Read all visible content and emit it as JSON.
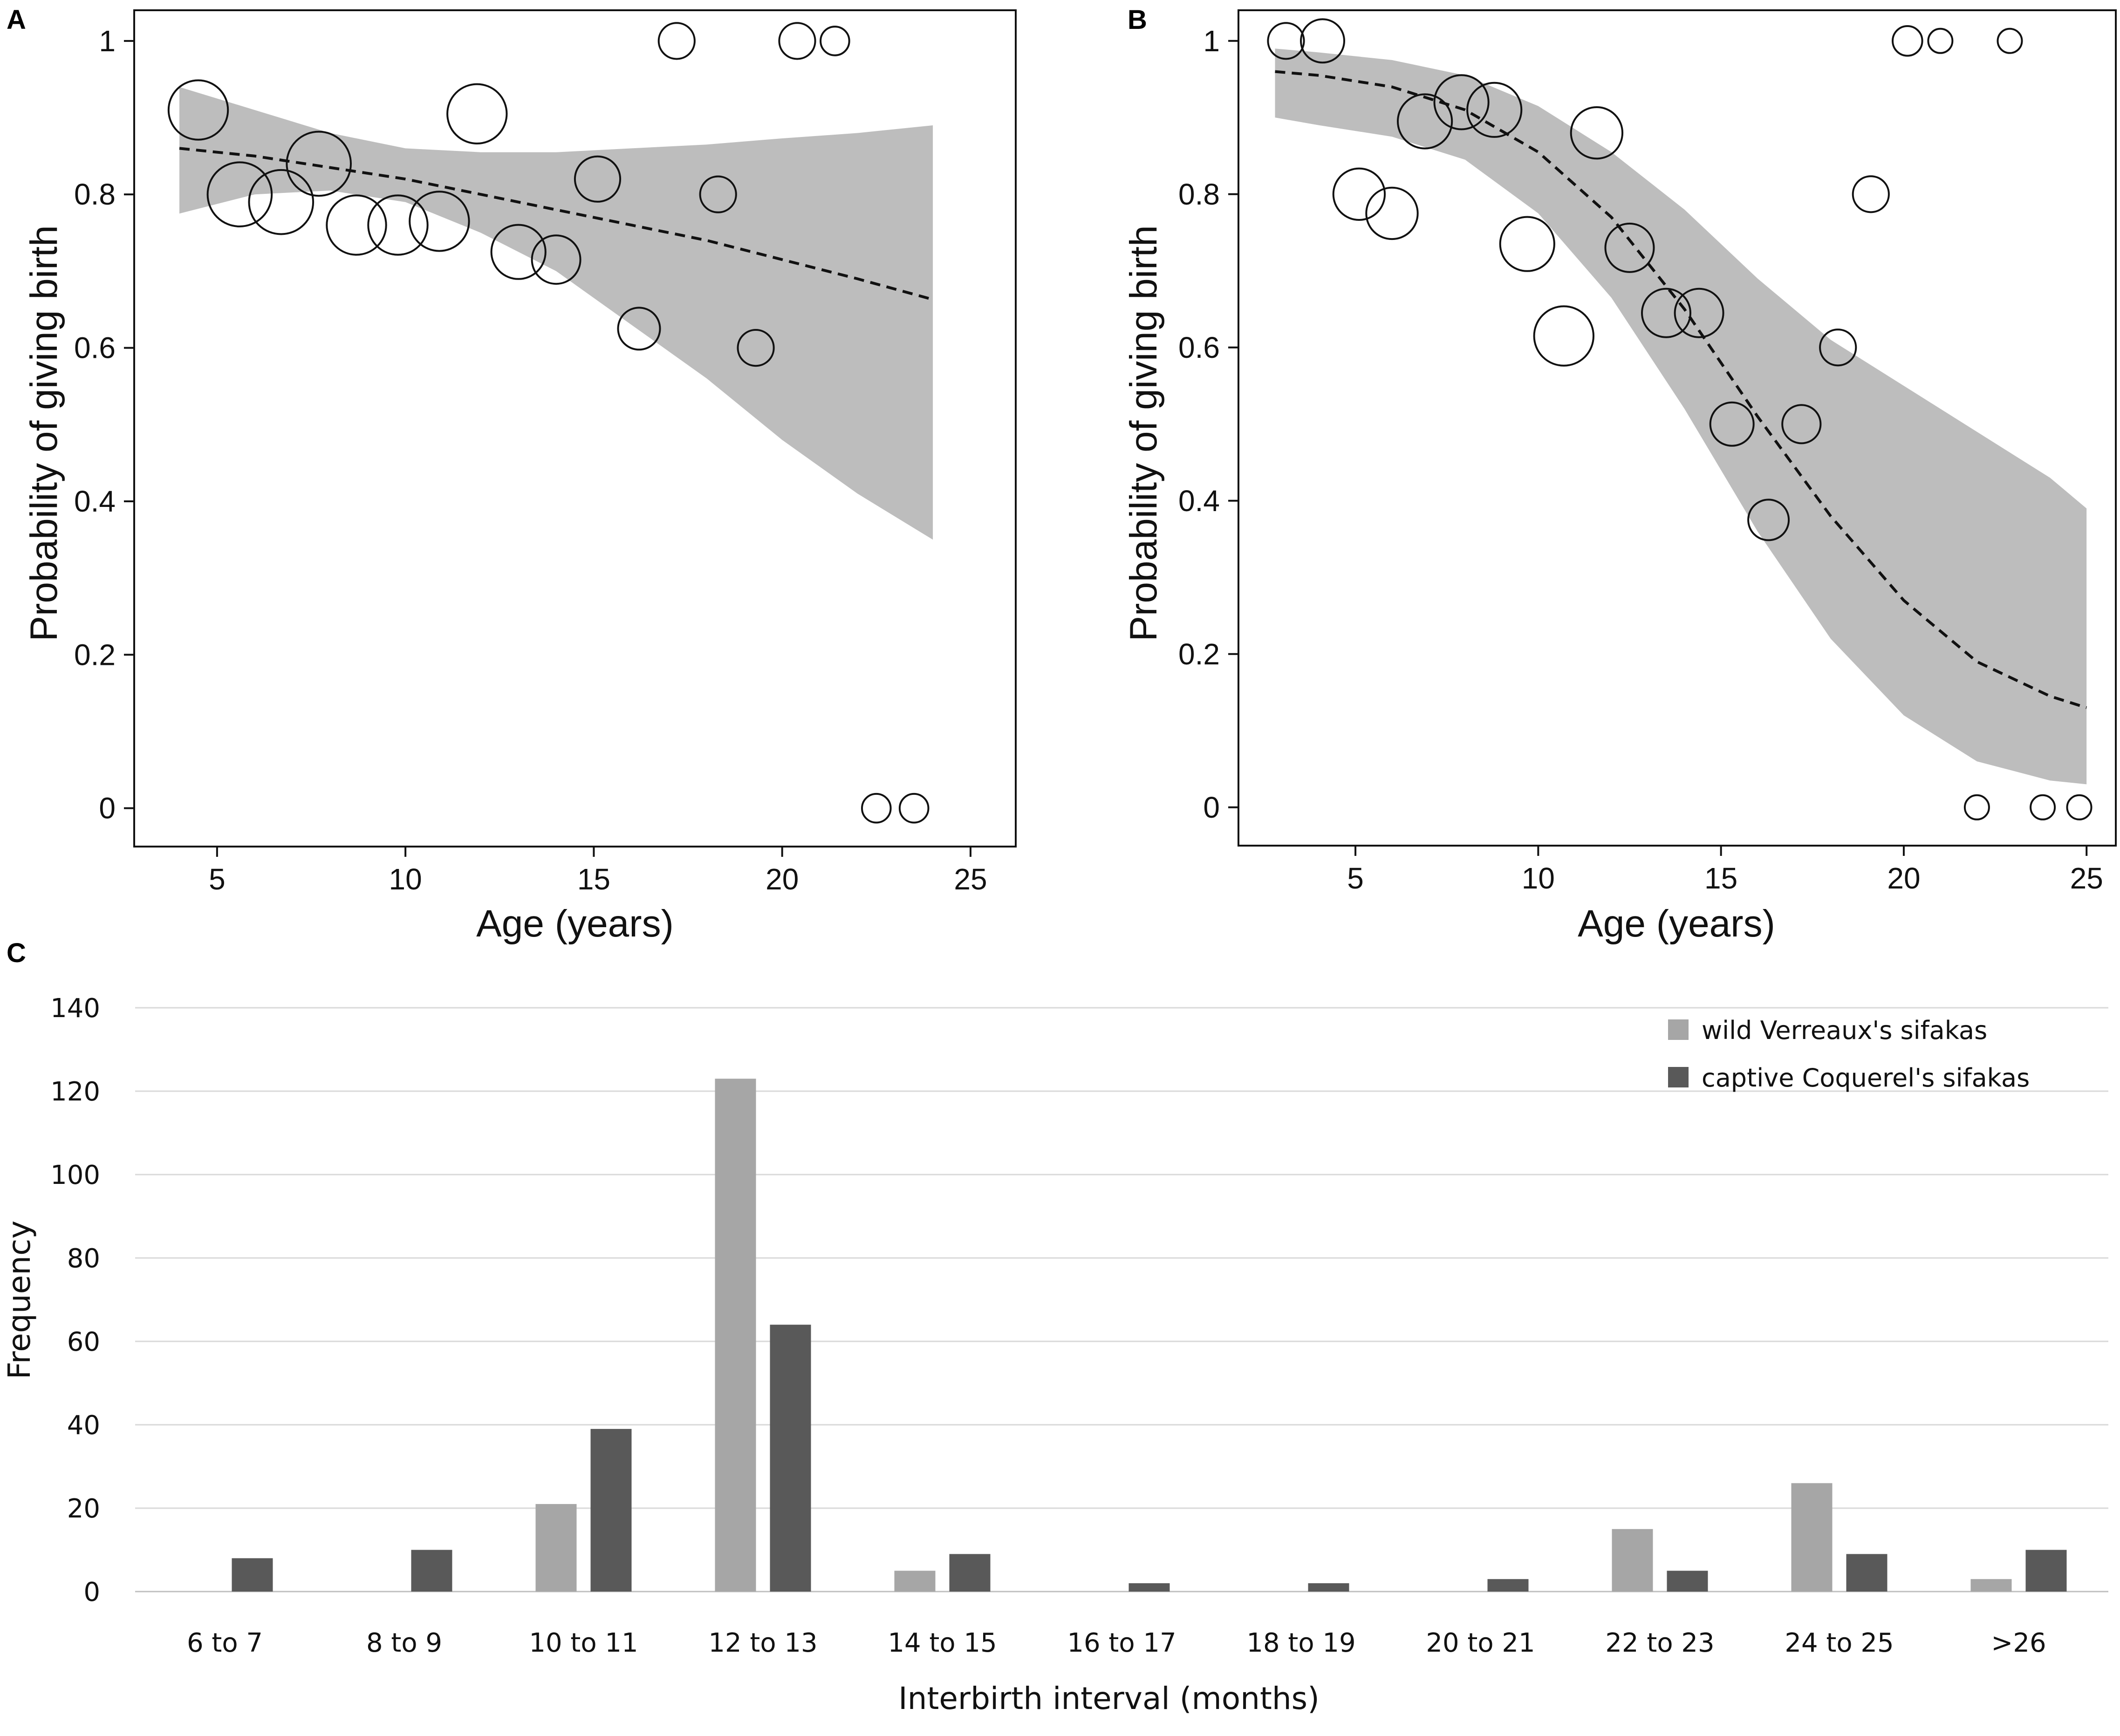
{
  "panels": {
    "a": "A",
    "b": "B",
    "c": "C"
  },
  "colors": {
    "band": "#bdbdbd",
    "wild": "#a6a6a6",
    "captive": "#595959",
    "grid": "#d9d9d9",
    "ink": "#111111"
  },
  "chart_data": [
    {
      "panel": "A",
      "type": "scatter",
      "xlabel": "Age (years)",
      "ylabel": "Probability of giving birth",
      "xlim": [
        2.8,
        26.2
      ],
      "ylim": [
        -0.05,
        1.04
      ],
      "xticks": [
        5,
        10,
        15,
        20,
        25
      ],
      "yticks": [
        0,
        0.2,
        0.4,
        0.6,
        0.8,
        1
      ],
      "ytick_labels": [
        "0",
        "0.2",
        "0.4",
        "0.6",
        "0.8",
        "1"
      ],
      "points": [
        {
          "x": 4.5,
          "y": 0.91,
          "size": 6
        },
        {
          "x": 5.6,
          "y": 0.8,
          "size": 7
        },
        {
          "x": 6.7,
          "y": 0.79,
          "size": 7
        },
        {
          "x": 7.7,
          "y": 0.84,
          "size": 7
        },
        {
          "x": 8.7,
          "y": 0.76,
          "size": 6
        },
        {
          "x": 9.8,
          "y": 0.76,
          "size": 6
        },
        {
          "x": 10.9,
          "y": 0.765,
          "size": 6
        },
        {
          "x": 11.9,
          "y": 0.905,
          "size": 6
        },
        {
          "x": 13.0,
          "y": 0.725,
          "size": 5
        },
        {
          "x": 14.0,
          "y": 0.715,
          "size": 4
        },
        {
          "x": 15.1,
          "y": 0.82,
          "size": 3.5
        },
        {
          "x": 16.2,
          "y": 0.625,
          "size": 3
        },
        {
          "x": 17.2,
          "y": 1.0,
          "size": 2.2
        },
        {
          "x": 18.3,
          "y": 0.8,
          "size": 2.2
        },
        {
          "x": 19.3,
          "y": 0.6,
          "size": 2.2
        },
        {
          "x": 20.4,
          "y": 1.0,
          "size": 2.2
        },
        {
          "x": 21.4,
          "y": 1.0,
          "size": 1.4
        },
        {
          "x": 22.5,
          "y": 0.0,
          "size": 1.4
        },
        {
          "x": 23.5,
          "y": 0.0,
          "size": 1.4
        }
      ],
      "fit_x": [
        4,
        6,
        8,
        10,
        12,
        14,
        16,
        18,
        20,
        22,
        24
      ],
      "fit_y": [
        0.86,
        0.85,
        0.835,
        0.82,
        0.8,
        0.78,
        0.76,
        0.74,
        0.715,
        0.69,
        0.663
      ],
      "ci_lower": [
        0.775,
        0.8,
        0.805,
        0.79,
        0.75,
        0.7,
        0.63,
        0.56,
        0.48,
        0.41,
        0.35
      ],
      "ci_upper": [
        0.94,
        0.91,
        0.88,
        0.86,
        0.855,
        0.855,
        0.86,
        0.865,
        0.873,
        0.88,
        0.89
      ]
    },
    {
      "panel": "B",
      "type": "scatter",
      "xlabel": "Age (years)",
      "ylabel": "Probability of giving birth",
      "xlim": [
        1.8,
        25.8
      ],
      "ylim": [
        -0.05,
        1.04
      ],
      "xticks": [
        5,
        10,
        15,
        20,
        25
      ],
      "yticks": [
        0,
        0.2,
        0.4,
        0.6,
        0.8,
        1
      ],
      "ytick_labels": [
        "0",
        "0.2",
        "0.4",
        "0.6",
        "0.8",
        "1"
      ],
      "points": [
        {
          "x": 3.1,
          "y": 1.0,
          "size": 2.2
        },
        {
          "x": 4.1,
          "y": 1.0,
          "size": 3.2
        },
        {
          "x": 5.1,
          "y": 0.8,
          "size": 4.5
        },
        {
          "x": 6.0,
          "y": 0.775,
          "size": 4.5
        },
        {
          "x": 6.9,
          "y": 0.895,
          "size": 5
        },
        {
          "x": 7.9,
          "y": 0.92,
          "size": 5
        },
        {
          "x": 8.8,
          "y": 0.91,
          "size": 5
        },
        {
          "x": 9.7,
          "y": 0.735,
          "size": 5
        },
        {
          "x": 10.7,
          "y": 0.615,
          "size": 6
        },
        {
          "x": 11.6,
          "y": 0.88,
          "size": 4.5
        },
        {
          "x": 12.5,
          "y": 0.73,
          "size": 4
        },
        {
          "x": 13.5,
          "y": 0.645,
          "size": 4
        },
        {
          "x": 14.4,
          "y": 0.645,
          "size": 4
        },
        {
          "x": 15.3,
          "y": 0.5,
          "size": 3.2
        },
        {
          "x": 16.3,
          "y": 0.375,
          "size": 2.8
        },
        {
          "x": 17.2,
          "y": 0.5,
          "size": 2.5
        },
        {
          "x": 18.2,
          "y": 0.6,
          "size": 2.2
        },
        {
          "x": 19.1,
          "y": 0.8,
          "size": 2.2
        },
        {
          "x": 20.1,
          "y": 1.0,
          "size": 1.5
        },
        {
          "x": 21.0,
          "y": 1.0,
          "size": 1.0
        },
        {
          "x": 22.0,
          "y": 0.0,
          "size": 1.0
        },
        {
          "x": 22.9,
          "y": 1.0,
          "size": 1.0
        },
        {
          "x": 23.8,
          "y": 0.0,
          "size": 1.0
        },
        {
          "x": 24.8,
          "y": 0.0,
          "size": 1.0
        }
      ],
      "fit_x": [
        2.8,
        4,
        6,
        8,
        10,
        12,
        14,
        16,
        18,
        20,
        22,
        24,
        25
      ],
      "fit_y": [
        0.96,
        0.955,
        0.94,
        0.91,
        0.855,
        0.77,
        0.65,
        0.51,
        0.38,
        0.27,
        0.19,
        0.145,
        0.13
      ],
      "ci_lower": [
        0.9,
        0.89,
        0.875,
        0.845,
        0.775,
        0.665,
        0.52,
        0.36,
        0.22,
        0.12,
        0.06,
        0.035,
        0.03
      ],
      "ci_upper": [
        0.99,
        0.985,
        0.975,
        0.955,
        0.915,
        0.855,
        0.78,
        0.69,
        0.61,
        0.55,
        0.49,
        0.43,
        0.39
      ]
    },
    {
      "panel": "C",
      "type": "bar",
      "title": "",
      "xlabel": "Interbirth interval (months)",
      "ylabel": "Frequency",
      "ylim": [
        0,
        140
      ],
      "yticks": [
        0,
        20,
        40,
        60,
        80,
        100,
        120,
        140
      ],
      "categories": [
        "6 to 7",
        "8 to 9",
        "10 to 11",
        "12 to 13",
        "14 to 15",
        "16 to 17",
        "18 to 19",
        "20 to 21",
        "22 to 23",
        "24 to 25",
        ">26"
      ],
      "series": [
        {
          "name": "wild Verreaux's sifakas",
          "values": [
            0,
            0,
            21,
            123,
            5,
            0,
            0,
            0,
            15,
            26,
            3
          ]
        },
        {
          "name": "captive Coquerel's sifakas",
          "values": [
            8,
            10,
            39,
            64,
            9,
            2,
            2,
            3,
            5,
            9,
            10
          ]
        }
      ]
    }
  ]
}
